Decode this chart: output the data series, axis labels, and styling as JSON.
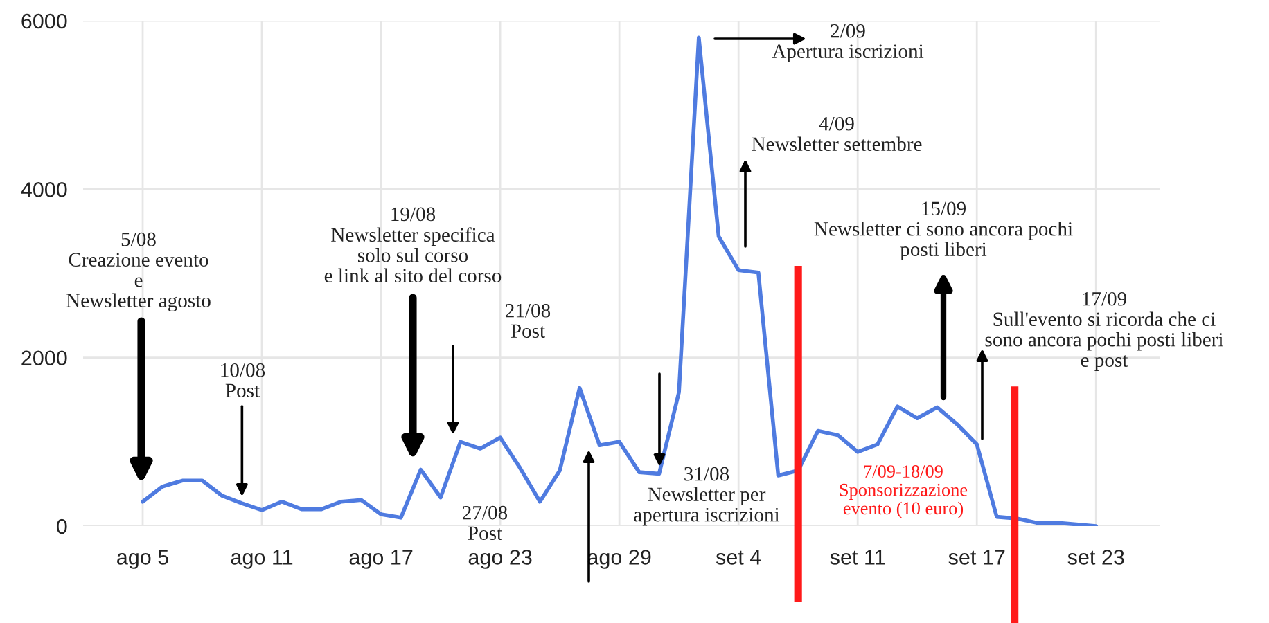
{
  "chart_data": {
    "type": "line",
    "categories": [
      "ago 5",
      null,
      null,
      null,
      null,
      null,
      "ago 11",
      null,
      null,
      null,
      null,
      null,
      "ago 17",
      null,
      null,
      null,
      null,
      null,
      "ago 23",
      null,
      null,
      null,
      null,
      null,
      "ago 29",
      null,
      null,
      null,
      null,
      null,
      "set 4",
      null,
      null,
      null,
      null,
      null,
      "set 11",
      null,
      null,
      null,
      null,
      null,
      "set 17",
      null,
      null,
      null,
      null,
      null,
      "set 23"
    ],
    "series": [
      {
        "color": "#4f7be0",
        "values": [
          290,
          470,
          540,
          540,
          360,
          270,
          190,
          290,
          200,
          200,
          290,
          310,
          140,
          100,
          670,
          340,
          1000,
          920,
          1050,
          690,
          290,
          660,
          1640,
          960,
          1000,
          640,
          620,
          1590,
          5800,
          3440,
          3040,
          3010,
          600,
          660,
          1130,
          1080,
          880,
          970,
          1420,
          1280,
          1410,
          1210,
          970,
          110,
          90,
          40,
          40,
          20,
          0
        ]
      }
    ],
    "ylim": [
      0,
      6000
    ],
    "yticks": [
      0,
      2000,
      4000,
      6000
    ],
    "grid": true,
    "marker": "none",
    "line_style": "solid",
    "annotations": [
      "5/08\nCreazione evento\ne\nNewsletter agosto",
      {
        "text": "10/08\nPost",
        "y": 270
      },
      "19/08\nNewsletter specifica\nsolo sul corso\ne link al sito del corso",
      "21/08\nPost",
      "27/08\nPost",
      "31/08\nNewsletter per\napertura iscrizioni",
      "2/09\nApertura iscrizioni",
      "4/09\nNewsletter settembre",
      "15/09\nNewsletter ci sono ancora pochi\nposti liberi",
      "17/09\nSull'evento si ricorda che ci\nsono ancora pochi posti liberi\ne post",
      "7/09-18/09\nSponsorizzazione\nevento (10 euro)"
    ]
  }
}
